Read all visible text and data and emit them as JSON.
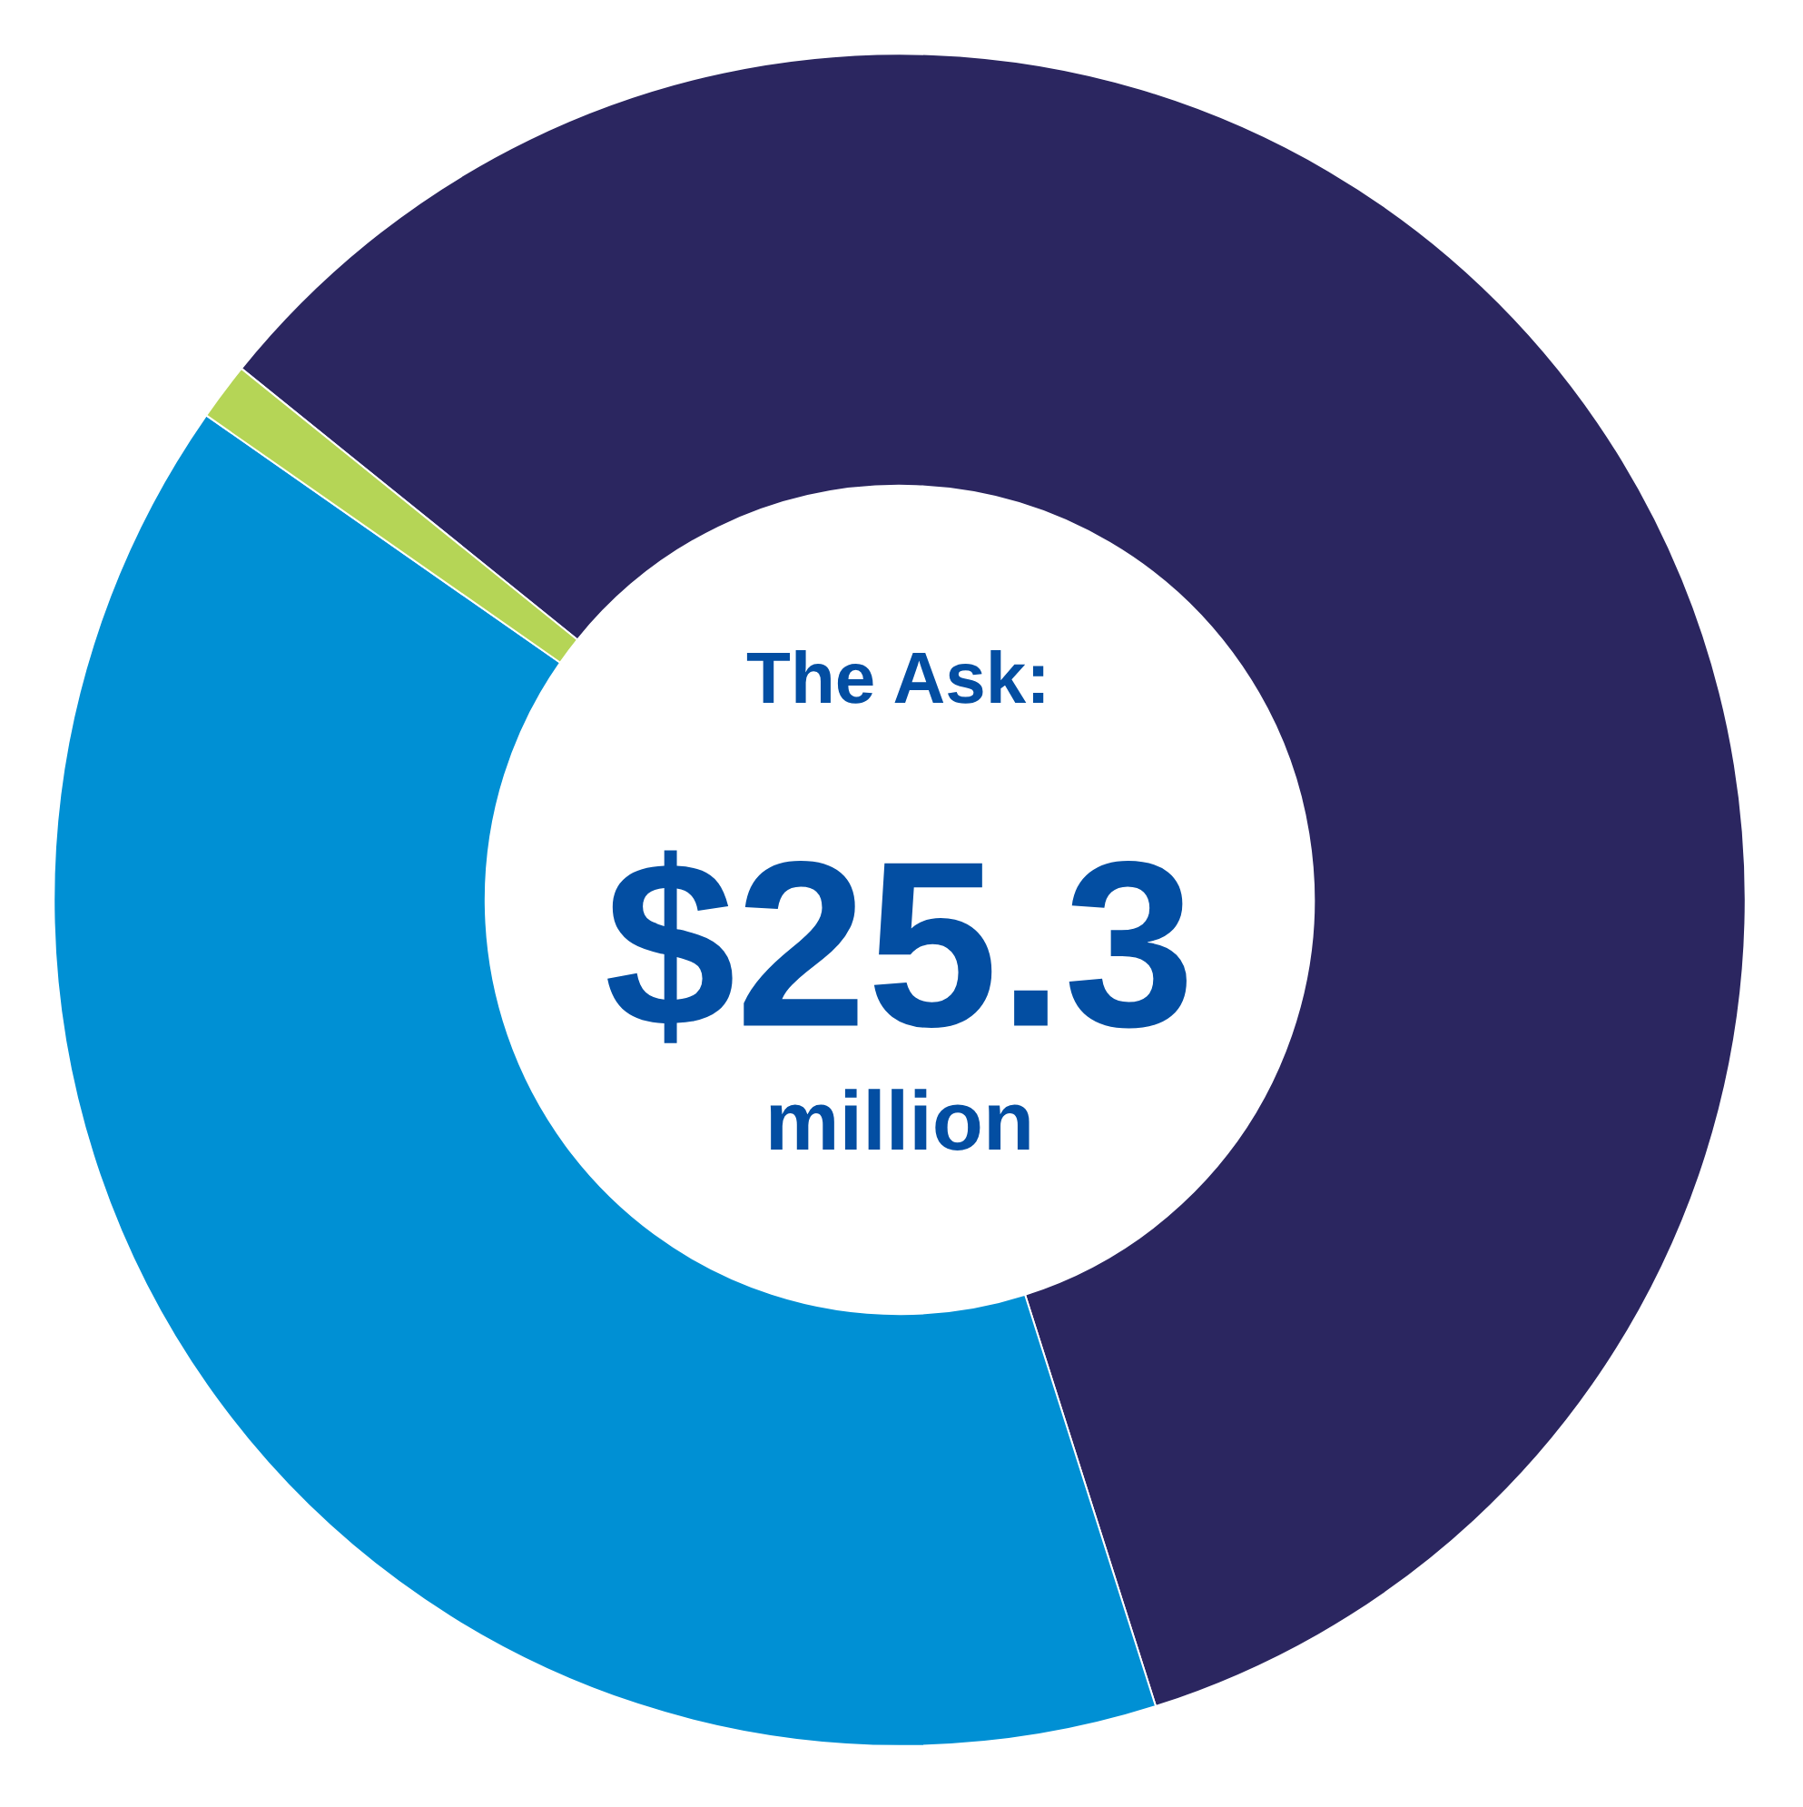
{
  "chart_data": {
    "type": "donut",
    "categories": [
      null,
      null,
      null
    ],
    "values": [
      59.3,
      39.6,
      1.1
    ],
    "colors": [
      "#2b2660",
      "#0090d4",
      "#b5d556"
    ],
    "annotations": [
      "The Ask:",
      "$25.3",
      "million"
    ]
  }
}
